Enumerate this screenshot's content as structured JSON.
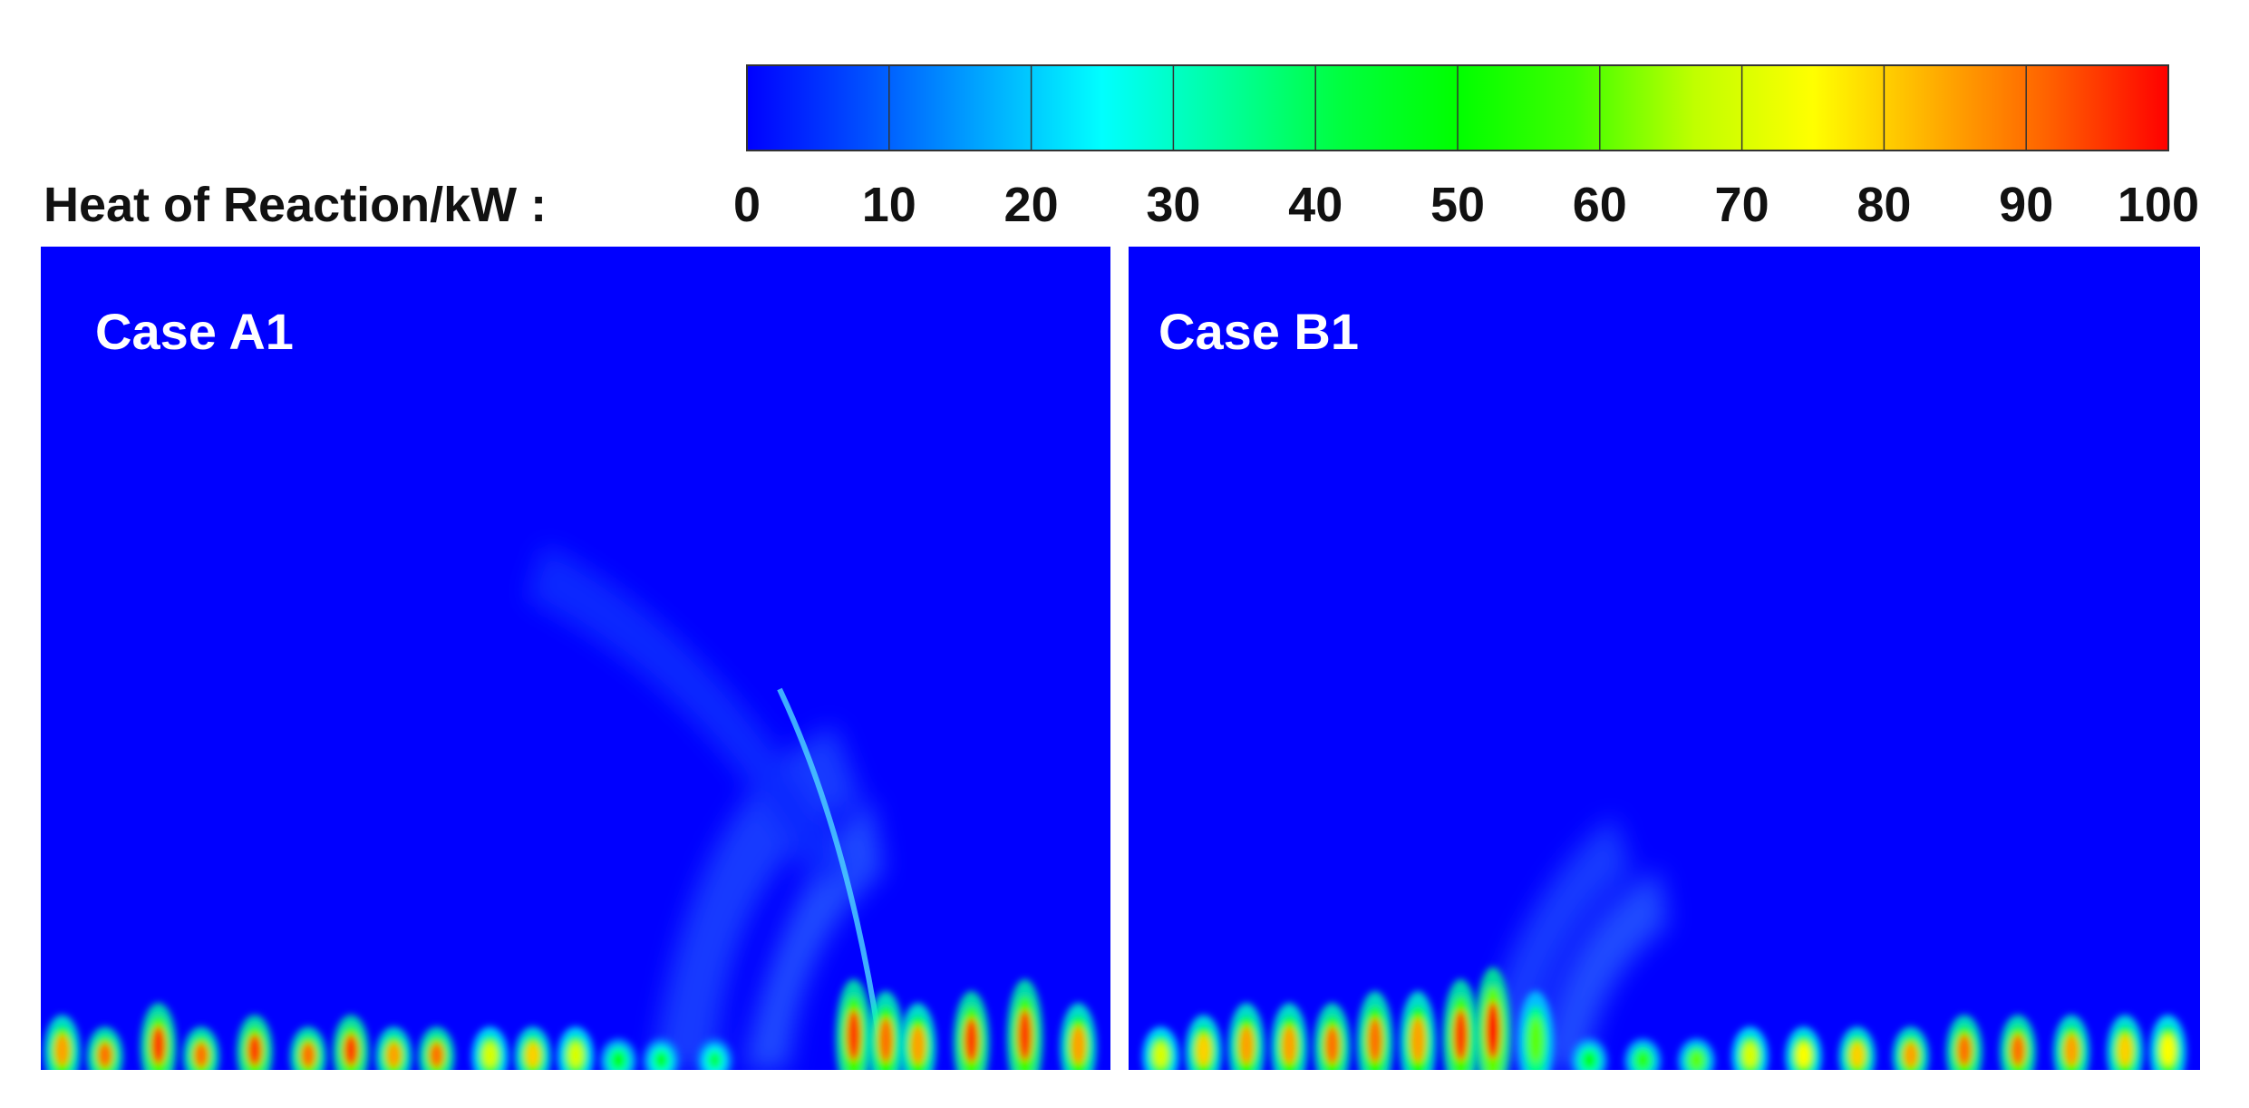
{
  "chart_data": {
    "type": "heatmap",
    "colorbar": {
      "label": "Heat of Reaction/kW :",
      "range": [
        0,
        100
      ],
      "ticks": [
        "0",
        "10",
        "20",
        "30",
        "40",
        "50",
        "60",
        "70",
        "80",
        "90",
        "100"
      ],
      "tick_values": [
        0,
        10,
        20,
        30,
        40,
        50,
        60,
        70,
        80,
        90,
        100
      ],
      "colors": [
        "#0000ff",
        "#0050ff",
        "#00a8ff",
        "#00ffff",
        "#00ffa0",
        "#00ff40",
        "#00ff00",
        "#40ff00",
        "#c0ff00",
        "#ffff00",
        "#ffb000",
        "#ff6000",
        "#ff0000"
      ],
      "position": "top"
    },
    "panels": [
      {
        "title": "Case A1",
        "background_value": 2,
        "hotspots": [
          {
            "x": 0.02,
            "h": 0.04,
            "v": 85
          },
          {
            "x": 0.06,
            "h": 0.03,
            "v": 90
          },
          {
            "x": 0.11,
            "h": 0.05,
            "v": 95
          },
          {
            "x": 0.15,
            "h": 0.03,
            "v": 90
          },
          {
            "x": 0.2,
            "h": 0.04,
            "v": 95
          },
          {
            "x": 0.25,
            "h": 0.03,
            "v": 90
          },
          {
            "x": 0.29,
            "h": 0.04,
            "v": 95
          },
          {
            "x": 0.33,
            "h": 0.03,
            "v": 85
          },
          {
            "x": 0.37,
            "h": 0.03,
            "v": 90
          },
          {
            "x": 0.42,
            "h": 0.03,
            "v": 70
          },
          {
            "x": 0.46,
            "h": 0.03,
            "v": 80
          },
          {
            "x": 0.5,
            "h": 0.03,
            "v": 70
          },
          {
            "x": 0.54,
            "h": 0.02,
            "v": 50
          },
          {
            "x": 0.58,
            "h": 0.02,
            "v": 45
          },
          {
            "x": 0.63,
            "h": 0.02,
            "v": 40
          },
          {
            "x": 0.76,
            "h": 0.07,
            "v": 95
          },
          {
            "x": 0.79,
            "h": 0.06,
            "v": 90
          },
          {
            "x": 0.82,
            "h": 0.05,
            "v": 85
          },
          {
            "x": 0.87,
            "h": 0.06,
            "v": 95
          },
          {
            "x": 0.92,
            "h": 0.07,
            "v": 95
          },
          {
            "x": 0.97,
            "h": 0.05,
            "v": 85
          }
        ]
      },
      {
        "title": "Case B1",
        "background_value": 2,
        "hotspots": [
          {
            "x": 0.03,
            "h": 0.03,
            "v": 70
          },
          {
            "x": 0.07,
            "h": 0.04,
            "v": 80
          },
          {
            "x": 0.11,
            "h": 0.05,
            "v": 85
          },
          {
            "x": 0.15,
            "h": 0.05,
            "v": 85
          },
          {
            "x": 0.19,
            "h": 0.05,
            "v": 90
          },
          {
            "x": 0.23,
            "h": 0.06,
            "v": 90
          },
          {
            "x": 0.27,
            "h": 0.06,
            "v": 85
          },
          {
            "x": 0.31,
            "h": 0.07,
            "v": 95
          },
          {
            "x": 0.34,
            "h": 0.08,
            "v": 100
          },
          {
            "x": 0.38,
            "h": 0.06,
            "v": 60
          },
          {
            "x": 0.43,
            "h": 0.02,
            "v": 50
          },
          {
            "x": 0.48,
            "h": 0.02,
            "v": 55
          },
          {
            "x": 0.53,
            "h": 0.02,
            "v": 60
          },
          {
            "x": 0.58,
            "h": 0.03,
            "v": 70
          },
          {
            "x": 0.63,
            "h": 0.03,
            "v": 75
          },
          {
            "x": 0.68,
            "h": 0.03,
            "v": 80
          },
          {
            "x": 0.73,
            "h": 0.03,
            "v": 85
          },
          {
            "x": 0.78,
            "h": 0.04,
            "v": 90
          },
          {
            "x": 0.83,
            "h": 0.04,
            "v": 90
          },
          {
            "x": 0.88,
            "h": 0.04,
            "v": 85
          },
          {
            "x": 0.93,
            "h": 0.04,
            "v": 80
          },
          {
            "x": 0.97,
            "h": 0.04,
            "v": 75
          }
        ]
      }
    ]
  }
}
